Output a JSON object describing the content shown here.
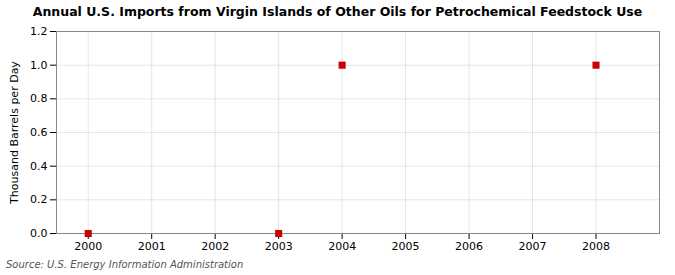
{
  "chart_data": {
    "type": "scatter",
    "title": "Annual U.S. Imports from Virgin Islands of Other Oils for Petrochemical Feedstock Use",
    "ylabel": "Thousand Barrels per Day",
    "source": "Source: U.S. Energy Information Administration",
    "x": [
      2000,
      2003,
      2004,
      2008
    ],
    "values": [
      0.0,
      0.0,
      1.0,
      1.0
    ],
    "color": "#cc0000",
    "marker": "square",
    "xlim": [
      1999.5,
      2009.0
    ],
    "xticks": [
      2000,
      2001,
      2002,
      2003,
      2004,
      2005,
      2006,
      2007,
      2008
    ],
    "ylim": [
      0.0,
      1.2
    ],
    "yticks": [
      {
        "value": 0.0,
        "label": "0.0"
      },
      0.2,
      0.4,
      0.6,
      0.8,
      {
        "value": 1.0,
        "label": "1.0"
      },
      1.2
    ],
    "grid": true
  }
}
